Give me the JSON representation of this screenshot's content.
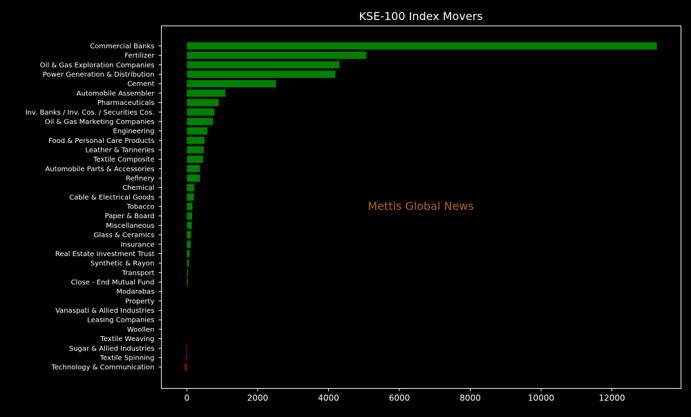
{
  "chart_data": {
    "type": "bar",
    "orientation": "horizontal",
    "title": "KSE-100 Index Movers",
    "watermark": "Mettis Global News",
    "xlim": [
      -720,
      13950
    ],
    "xticks": [
      0,
      2000,
      4000,
      6000,
      8000,
      10000,
      12000
    ],
    "xtick_labels": [
      "0",
      "2000",
      "4000",
      "6000",
      "8000",
      "10000",
      "12000"
    ],
    "grid": false,
    "legend": "none",
    "colors": {
      "background": "#000000",
      "text": "#ffffff",
      "positive": "#008000",
      "negative": "#b00000",
      "watermark": "#b5651d"
    },
    "categories": [
      "Commercial Banks",
      "Fertilizer",
      "Oil & Gas Exploration Companies",
      "Power Generation & Distribution",
      "Cement",
      "Automobile Assembler",
      "Pharmaceuticals",
      "Inv. Banks / Inv. Cos. / Securities Cos.",
      "Oil & Gas Marketing Companies",
      "Engineering",
      "Food & Personal Care Products",
      "Leather & Tanneries",
      "Textile Composite",
      "Automobile Parts & Accessories",
      "Refinery",
      "Chemical",
      "Cable & Electrical Goods",
      "Tobacco",
      "Paper & Board",
      "Miscellaneous",
      "Glass & Ceramics",
      "Insurance",
      "Real Estate Investment Trust",
      "Synthetic & Rayon",
      "Transport",
      "Close - End Mutual Fund",
      "Modarabas",
      "Property",
      "Vanaspati & Allied Industries",
      "Leasing Companies",
      "Woollen",
      "Textile Weaving",
      "Sugar & Allied Industries",
      "Textile Spinning",
      "Technology & Communication"
    ],
    "values": [
      13270,
      5070,
      4310,
      4190,
      2520,
      1090,
      900,
      780,
      740,
      580,
      500,
      480,
      460,
      370,
      370,
      210,
      200,
      160,
      150,
      140,
      120,
      110,
      80,
      60,
      30,
      30,
      0,
      0,
      0,
      0,
      0,
      0,
      -20,
      -30,
      -60
    ]
  }
}
